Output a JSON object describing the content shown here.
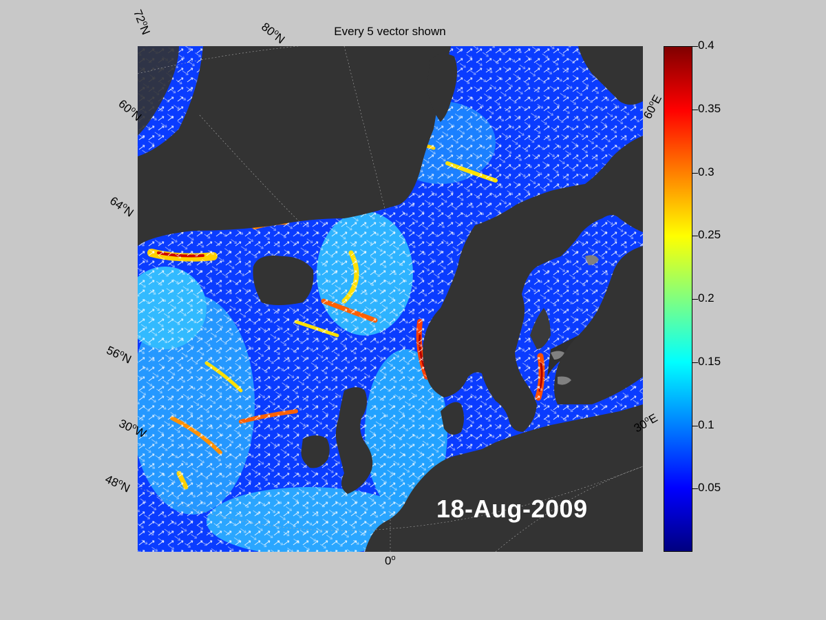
{
  "figure": {
    "title": "Every 5 vector shown",
    "date": "18-Aug-2009"
  },
  "map_labels": {
    "lat_72": "72",
    "lat_60": "60",
    "lat_64": "64",
    "lat_56": "56",
    "lat_48": "48",
    "lat_80": "80",
    "lon_30w": "30",
    "lon_0": "0",
    "lon_30e": "30",
    "lon_60e": "60",
    "deg": "o",
    "suffix_n": "N",
    "suffix_w": "W",
    "suffix_e": "E"
  },
  "colorbar": {
    "ticks": [
      "0.4",
      "0.35",
      "0.3",
      "0.25",
      "0.2",
      "0.15",
      "0.1",
      "0.05"
    ],
    "values": [
      0.4,
      0.35,
      0.3,
      0.25,
      0.2,
      0.15,
      0.1,
      0.05
    ],
    "range": [
      0,
      0.4
    ],
    "colormap": "jet",
    "colors": [
      "#800000",
      "#ff0000",
      "#ff8000",
      "#ffff00",
      "#80ff80",
      "#00ffff",
      "#0080ff",
      "#0000ff",
      "#000080"
    ]
  },
  "colors": {
    "background": "#c8c8c8",
    "land": "#333333",
    "ocean": "#0a3cff",
    "vector": "#ffffff"
  }
}
